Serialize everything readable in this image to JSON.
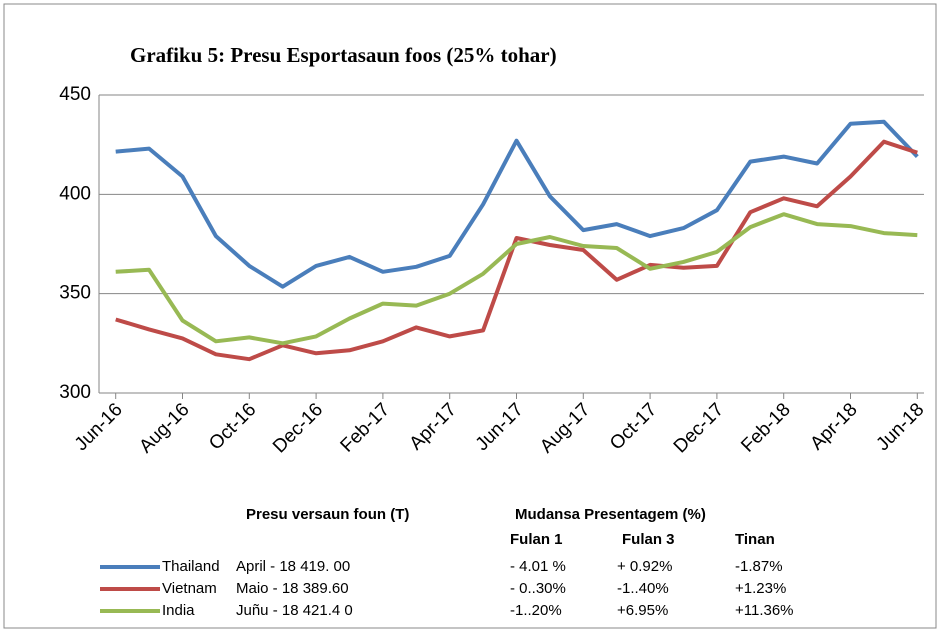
{
  "chart_data": {
    "type": "line",
    "title": "Grafiku 5: Presu Esportasaun foos (25% tohar)",
    "categories": [
      "Jun-16",
      null,
      "Aug-16",
      null,
      "Oct-16",
      null,
      "Dec-16",
      null,
      "Feb-17",
      null,
      "Apr-17",
      null,
      "Jun-17",
      null,
      "Aug-17",
      null,
      "Oct-17",
      null,
      "Dec-17",
      null,
      "Feb-18",
      null,
      "Apr-18",
      null,
      "Jun-18"
    ],
    "series": [
      {
        "name": "Thailand",
        "color": "#4a7ebb",
        "values": [
          421.5,
          423,
          409,
          379,
          364,
          353.5,
          364,
          368.5,
          361,
          363.5,
          369,
          395,
          427,
          399,
          382,
          385,
          379,
          383,
          392,
          416.5,
          419,
          415.5,
          435.5,
          436.5,
          419
        ]
      },
      {
        "name": "Vietnam",
        "color": "#be4b48",
        "values": [
          337,
          332,
          327.5,
          319.5,
          317,
          324,
          320,
          321.5,
          326,
          333,
          328.5,
          331.5,
          378,
          374.5,
          372,
          357,
          364.5,
          363,
          364,
          391,
          398,
          394,
          409,
          426.5,
          421
        ]
      },
      {
        "name": "India",
        "color": "#98b954",
        "values": [
          361,
          362,
          336.5,
          326,
          328,
          325,
          328.5,
          337.5,
          345,
          344,
          350,
          360,
          375,
          378.5,
          374,
          373,
          362.5,
          366,
          371,
          383.5,
          390,
          385,
          384,
          380.5,
          379.5
        ]
      }
    ],
    "ylim": [
      300,
      450
    ],
    "yticks": [
      300,
      350,
      400,
      450
    ],
    "grid": true
  },
  "table": {
    "header": [
      "Presu  versaun foun (T)",
      "Mudansa Presentagem (%)"
    ],
    "subheader": [
      "Fulan 1",
      "Fulan 3",
      "Tinan"
    ],
    "rows": [
      [
        "April  - 18  419. 00",
        "- 4.01 %",
        "+ 0.92%",
        "-1.87%"
      ],
      [
        "Maio - 18  389.60",
        "- 0..30%",
        "-1..40%",
        "+1.23%"
      ],
      [
        "Juñu -  18  421.4 0",
        "-1..20%",
        "+6.95%",
        "+11.36%"
      ]
    ]
  }
}
